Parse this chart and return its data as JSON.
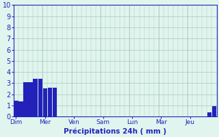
{
  "categories": [
    "Dim",
    "Mer",
    "Ven",
    "Sam",
    "Lun",
    "Mar",
    "Jeu"
  ],
  "n_bars": 42,
  "bar_values": [
    1.4,
    1.35,
    3.1,
    3.1,
    3.4,
    3.4,
    2.5,
    2.6,
    2.6,
    0,
    0,
    0,
    0,
    0,
    0,
    0,
    0,
    0,
    0,
    0,
    0,
    0,
    0,
    0,
    0,
    0,
    0,
    0,
    0,
    0,
    0,
    0,
    0,
    0,
    0,
    0,
    0,
    0,
    0,
    0,
    0.4,
    0.9
  ],
  "bar_color": "#2222bb",
  "bg_color": "#dff5ee",
  "grid_color": "#a8c8bc",
  "axis_label_color": "#2222bb",
  "tick_color": "#2222bb",
  "xlabel": "Précipitations 24h ( mm )",
  "ylim": [
    0,
    10
  ],
  "yticks": [
    0,
    1,
    2,
    3,
    4,
    5,
    6,
    7,
    8,
    9,
    10
  ],
  "tick_positions": [
    0,
    6,
    12,
    18,
    24,
    30,
    36
  ],
  "figsize": [
    3.2,
    2.0
  ],
  "dpi": 100
}
